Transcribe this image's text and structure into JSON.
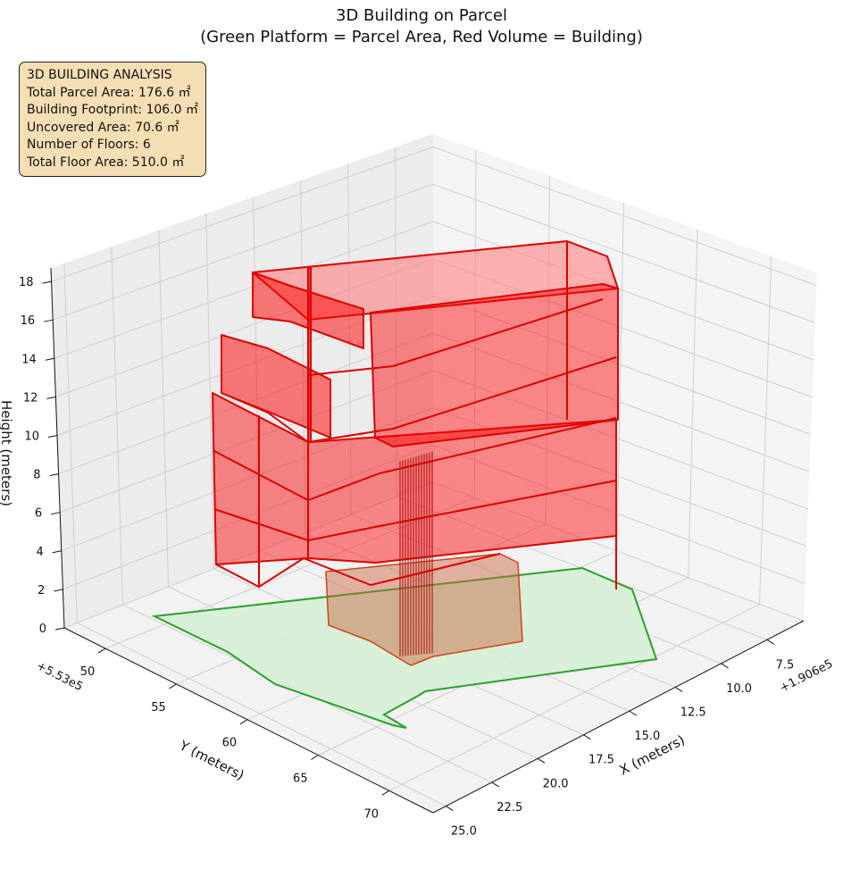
{
  "chart_data": {
    "type": "3d-polygon",
    "title": "3D Building on Parcel",
    "subtitle": "(Green Platform = Parcel Area, Red Volume = Building)",
    "xlabel": "X (meters)",
    "ylabel": "Y (meters)",
    "zlabel": "Height (meters)",
    "x_offset": "+1.906e5",
    "y_offset": "+5.53e5",
    "xlim": [
      5.5,
      25.7
    ],
    "ylim": [
      47.1,
      73.1
    ],
    "zlim": [
      0,
      18.7
    ],
    "x_ticks": [
      "7.5",
      "10.0",
      "12.5",
      "15.0",
      "17.5",
      "20.0",
      "22.5",
      "25.0"
    ],
    "x_tick_values": [
      7.5,
      10,
      12.5,
      15,
      17.5,
      20,
      22.5,
      25
    ],
    "y_ticks": [
      "50",
      "55",
      "60",
      "65",
      "70"
    ],
    "y_tick_values": [
      50,
      55,
      60,
      65,
      70
    ],
    "z_ticks": [
      "0",
      "2",
      "4",
      "6",
      "8",
      "10",
      "12",
      "14",
      "16",
      "18"
    ],
    "z_tick_values": [
      0,
      2,
      4,
      6,
      8,
      10,
      12,
      14,
      16,
      18
    ],
    "series": [
      {
        "name": "Parcel Area",
        "kind": "platform",
        "color": "#2ca02c",
        "fill": "#d4f0d4"
      },
      {
        "name": "Building",
        "kind": "volume",
        "color": "#dd0000",
        "fill": "#ff0000",
        "floors": 6
      }
    ],
    "grid": true
  },
  "info_box": {
    "heading": "3D BUILDING ANALYSIS",
    "lines": [
      "Total Parcel Area: 176.6 ㎡",
      "Building Footprint: 106.0 ㎡",
      "Uncovered Area: 70.6 ㎡",
      "Number of Floors: 6",
      "Total Floor Area: 510.0 ㎡"
    ]
  }
}
